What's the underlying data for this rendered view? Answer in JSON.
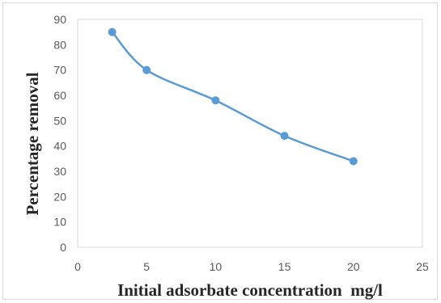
{
  "chart_data": {
    "type": "line",
    "title": "",
    "xlabel": "Initial adsorbate concentration  mg/l",
    "ylabel": "Percentage removal",
    "xlim": [
      0,
      25
    ],
    "ylim": [
      0,
      90
    ],
    "x_ticks": [
      "0",
      "5",
      "10",
      "15",
      "20",
      "25"
    ],
    "y_ticks": [
      "0",
      "10",
      "20",
      "30",
      "40",
      "50",
      "60",
      "70",
      "80",
      "90"
    ],
    "grid": false,
    "legend": "none",
    "color": "#5b9bd5",
    "series": [
      {
        "x": [
          2.5,
          5,
          10,
          15,
          20
        ],
        "y": [
          85,
          70,
          58,
          44,
          34
        ]
      }
    ]
  }
}
